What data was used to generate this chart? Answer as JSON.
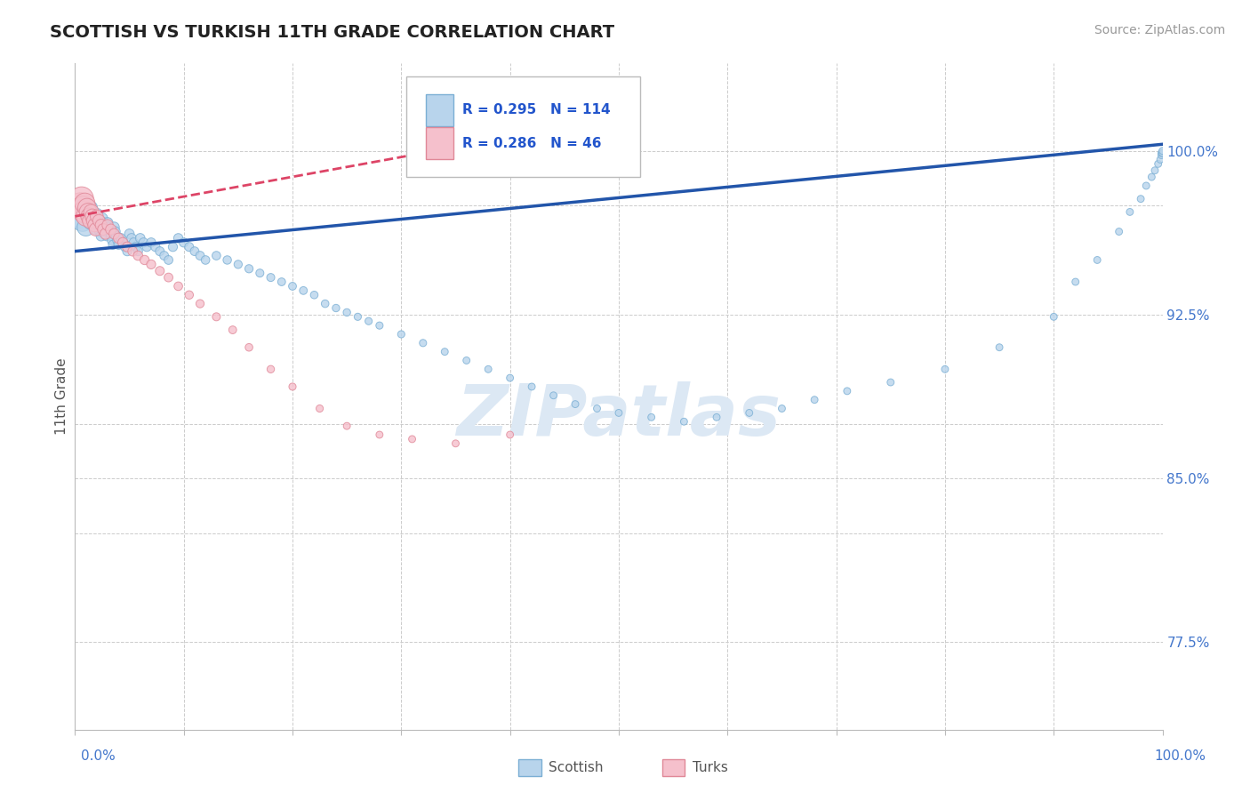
{
  "title": "SCOTTISH VS TURKISH 11TH GRADE CORRELATION CHART",
  "source_text": "Source: ZipAtlas.com",
  "ylabel": "11th Grade",
  "y_tick_positions": [
    0.775,
    0.85,
    0.925,
    1.0
  ],
  "y_tick_labels": [
    "77.5%",
    "85.0%",
    "92.5%",
    "100.0%"
  ],
  "x_range": [
    0.0,
    1.0
  ],
  "y_range": [
    0.735,
    1.04
  ],
  "scottish_R": 0.295,
  "scottish_N": 114,
  "turks_R": 0.286,
  "turks_N": 46,
  "scottish_color": "#b8d4ec",
  "scottish_edge": "#7bafd4",
  "turks_color": "#f5c0cc",
  "turks_edge": "#e08898",
  "trendline_scottish_color": "#2255aa",
  "trendline_turks_color": "#dd4466",
  "background_color": "#ffffff",
  "grid_color": "#cccccc",
  "watermark_color": "#dce8f4",
  "legend_r_color": "#2255cc",
  "title_color": "#222222",
  "axis_label_color": "#4477cc",
  "scottish_x": [
    0.005,
    0.007,
    0.008,
    0.009,
    0.01,
    0.01,
    0.011,
    0.012,
    0.013,
    0.014,
    0.015,
    0.015,
    0.016,
    0.017,
    0.018,
    0.019,
    0.02,
    0.02,
    0.021,
    0.022,
    0.023,
    0.024,
    0.025,
    0.026,
    0.027,
    0.028,
    0.029,
    0.03,
    0.031,
    0.032,
    0.033,
    0.034,
    0.035,
    0.036,
    0.037,
    0.038,
    0.039,
    0.04,
    0.042,
    0.044,
    0.046,
    0.048,
    0.05,
    0.052,
    0.054,
    0.056,
    0.058,
    0.06,
    0.063,
    0.066,
    0.07,
    0.074,
    0.078,
    0.082,
    0.086,
    0.09,
    0.095,
    0.1,
    0.105,
    0.11,
    0.115,
    0.12,
    0.13,
    0.14,
    0.15,
    0.16,
    0.17,
    0.18,
    0.19,
    0.2,
    0.21,
    0.22,
    0.23,
    0.24,
    0.25,
    0.26,
    0.27,
    0.28,
    0.3,
    0.32,
    0.34,
    0.36,
    0.38,
    0.4,
    0.42,
    0.44,
    0.46,
    0.48,
    0.5,
    0.53,
    0.56,
    0.59,
    0.62,
    0.65,
    0.68,
    0.71,
    0.75,
    0.8,
    0.85,
    0.9,
    0.92,
    0.94,
    0.96,
    0.97,
    0.98,
    0.985,
    0.99,
    0.993,
    0.996,
    0.998,
    0.999,
    0.999,
    1.0,
    1.0
  ],
  "scottish_y": [
    0.97,
    0.968,
    0.972,
    0.974,
    0.965,
    0.975,
    0.973,
    0.971,
    0.969,
    0.967,
    0.974,
    0.972,
    0.97,
    0.968,
    0.966,
    0.964,
    0.971,
    0.969,
    0.967,
    0.965,
    0.963,
    0.961,
    0.969,
    0.967,
    0.965,
    0.963,
    0.961,
    0.967,
    0.965,
    0.963,
    0.961,
    0.959,
    0.957,
    0.965,
    0.963,
    0.961,
    0.959,
    0.957,
    0.96,
    0.958,
    0.956,
    0.954,
    0.962,
    0.96,
    0.958,
    0.956,
    0.954,
    0.96,
    0.958,
    0.956,
    0.958,
    0.956,
    0.954,
    0.952,
    0.95,
    0.956,
    0.96,
    0.958,
    0.956,
    0.954,
    0.952,
    0.95,
    0.952,
    0.95,
    0.948,
    0.946,
    0.944,
    0.942,
    0.94,
    0.938,
    0.936,
    0.934,
    0.93,
    0.928,
    0.926,
    0.924,
    0.922,
    0.92,
    0.916,
    0.912,
    0.908,
    0.904,
    0.9,
    0.896,
    0.892,
    0.888,
    0.884,
    0.882,
    0.88,
    0.878,
    0.876,
    0.878,
    0.88,
    0.882,
    0.886,
    0.89,
    0.894,
    0.9,
    0.91,
    0.924,
    0.94,
    0.95,
    0.963,
    0.972,
    0.978,
    0.984,
    0.988,
    0.991,
    0.994,
    0.996,
    0.998,
    0.999,
    0.999,
    1.0
  ],
  "scottish_sizes": [
    350,
    300,
    260,
    230,
    200,
    180,
    160,
    140,
    120,
    110,
    100,
    95,
    90,
    85,
    80,
    75,
    90,
    85,
    80,
    75,
    70,
    65,
    80,
    75,
    70,
    65,
    60,
    75,
    70,
    65,
    60,
    58,
    56,
    70,
    65,
    60,
    58,
    56,
    60,
    58,
    56,
    54,
    60,
    58,
    56,
    54,
    52,
    58,
    56,
    54,
    56,
    54,
    52,
    50,
    50,
    54,
    56,
    54,
    52,
    50,
    50,
    48,
    48,
    46,
    44,
    44,
    42,
    42,
    40,
    40,
    40,
    38,
    38,
    36,
    36,
    34,
    34,
    34,
    34,
    34,
    32,
    32,
    32,
    32,
    32,
    32,
    32,
    32,
    32,
    32,
    32,
    32,
    32,
    32,
    32,
    32,
    32,
    32,
    32,
    32,
    32,
    32,
    32,
    32,
    32,
    32,
    32,
    32,
    32,
    32,
    32,
    32,
    32,
    32
  ],
  "turks_x": [
    0.005,
    0.006,
    0.007,
    0.008,
    0.009,
    0.01,
    0.011,
    0.012,
    0.013,
    0.014,
    0.015,
    0.016,
    0.017,
    0.018,
    0.019,
    0.02,
    0.022,
    0.024,
    0.026,
    0.028,
    0.03,
    0.033,
    0.036,
    0.04,
    0.044,
    0.048,
    0.053,
    0.058,
    0.064,
    0.07,
    0.078,
    0.086,
    0.095,
    0.105,
    0.115,
    0.13,
    0.145,
    0.16,
    0.18,
    0.2,
    0.225,
    0.25,
    0.28,
    0.31,
    0.35,
    0.4
  ],
  "turks_y": [
    0.975,
    0.978,
    0.974,
    0.972,
    0.976,
    0.97,
    0.974,
    0.972,
    0.97,
    0.968,
    0.972,
    0.97,
    0.968,
    0.966,
    0.964,
    0.97,
    0.968,
    0.966,
    0.964,
    0.962,
    0.966,
    0.964,
    0.962,
    0.96,
    0.958,
    0.956,
    0.954,
    0.952,
    0.95,
    0.948,
    0.945,
    0.942,
    0.938,
    0.934,
    0.93,
    0.924,
    0.918,
    0.91,
    0.9,
    0.892,
    0.882,
    0.874,
    0.87,
    0.868,
    0.866,
    0.87
  ],
  "turks_sizes": [
    420,
    380,
    340,
    300,
    270,
    250,
    220,
    200,
    180,
    160,
    150,
    140,
    130,
    120,
    110,
    110,
    100,
    90,
    85,
    80,
    80,
    75,
    70,
    68,
    66,
    64,
    60,
    58,
    56,
    54,
    52,
    50,
    48,
    46,
    44,
    42,
    40,
    38,
    36,
    34,
    34,
    32,
    32,
    32,
    32,
    32
  ],
  "scottish_trendline_x0": 0.0,
  "scottish_trendline_y0": 0.954,
  "scottish_trendline_x1": 1.0,
  "scottish_trendline_y1": 1.003,
  "turks_trendline_x0": 0.0,
  "turks_trendline_y0": 0.97,
  "turks_trendline_x1": 0.42,
  "turks_trendline_y1": 1.008
}
